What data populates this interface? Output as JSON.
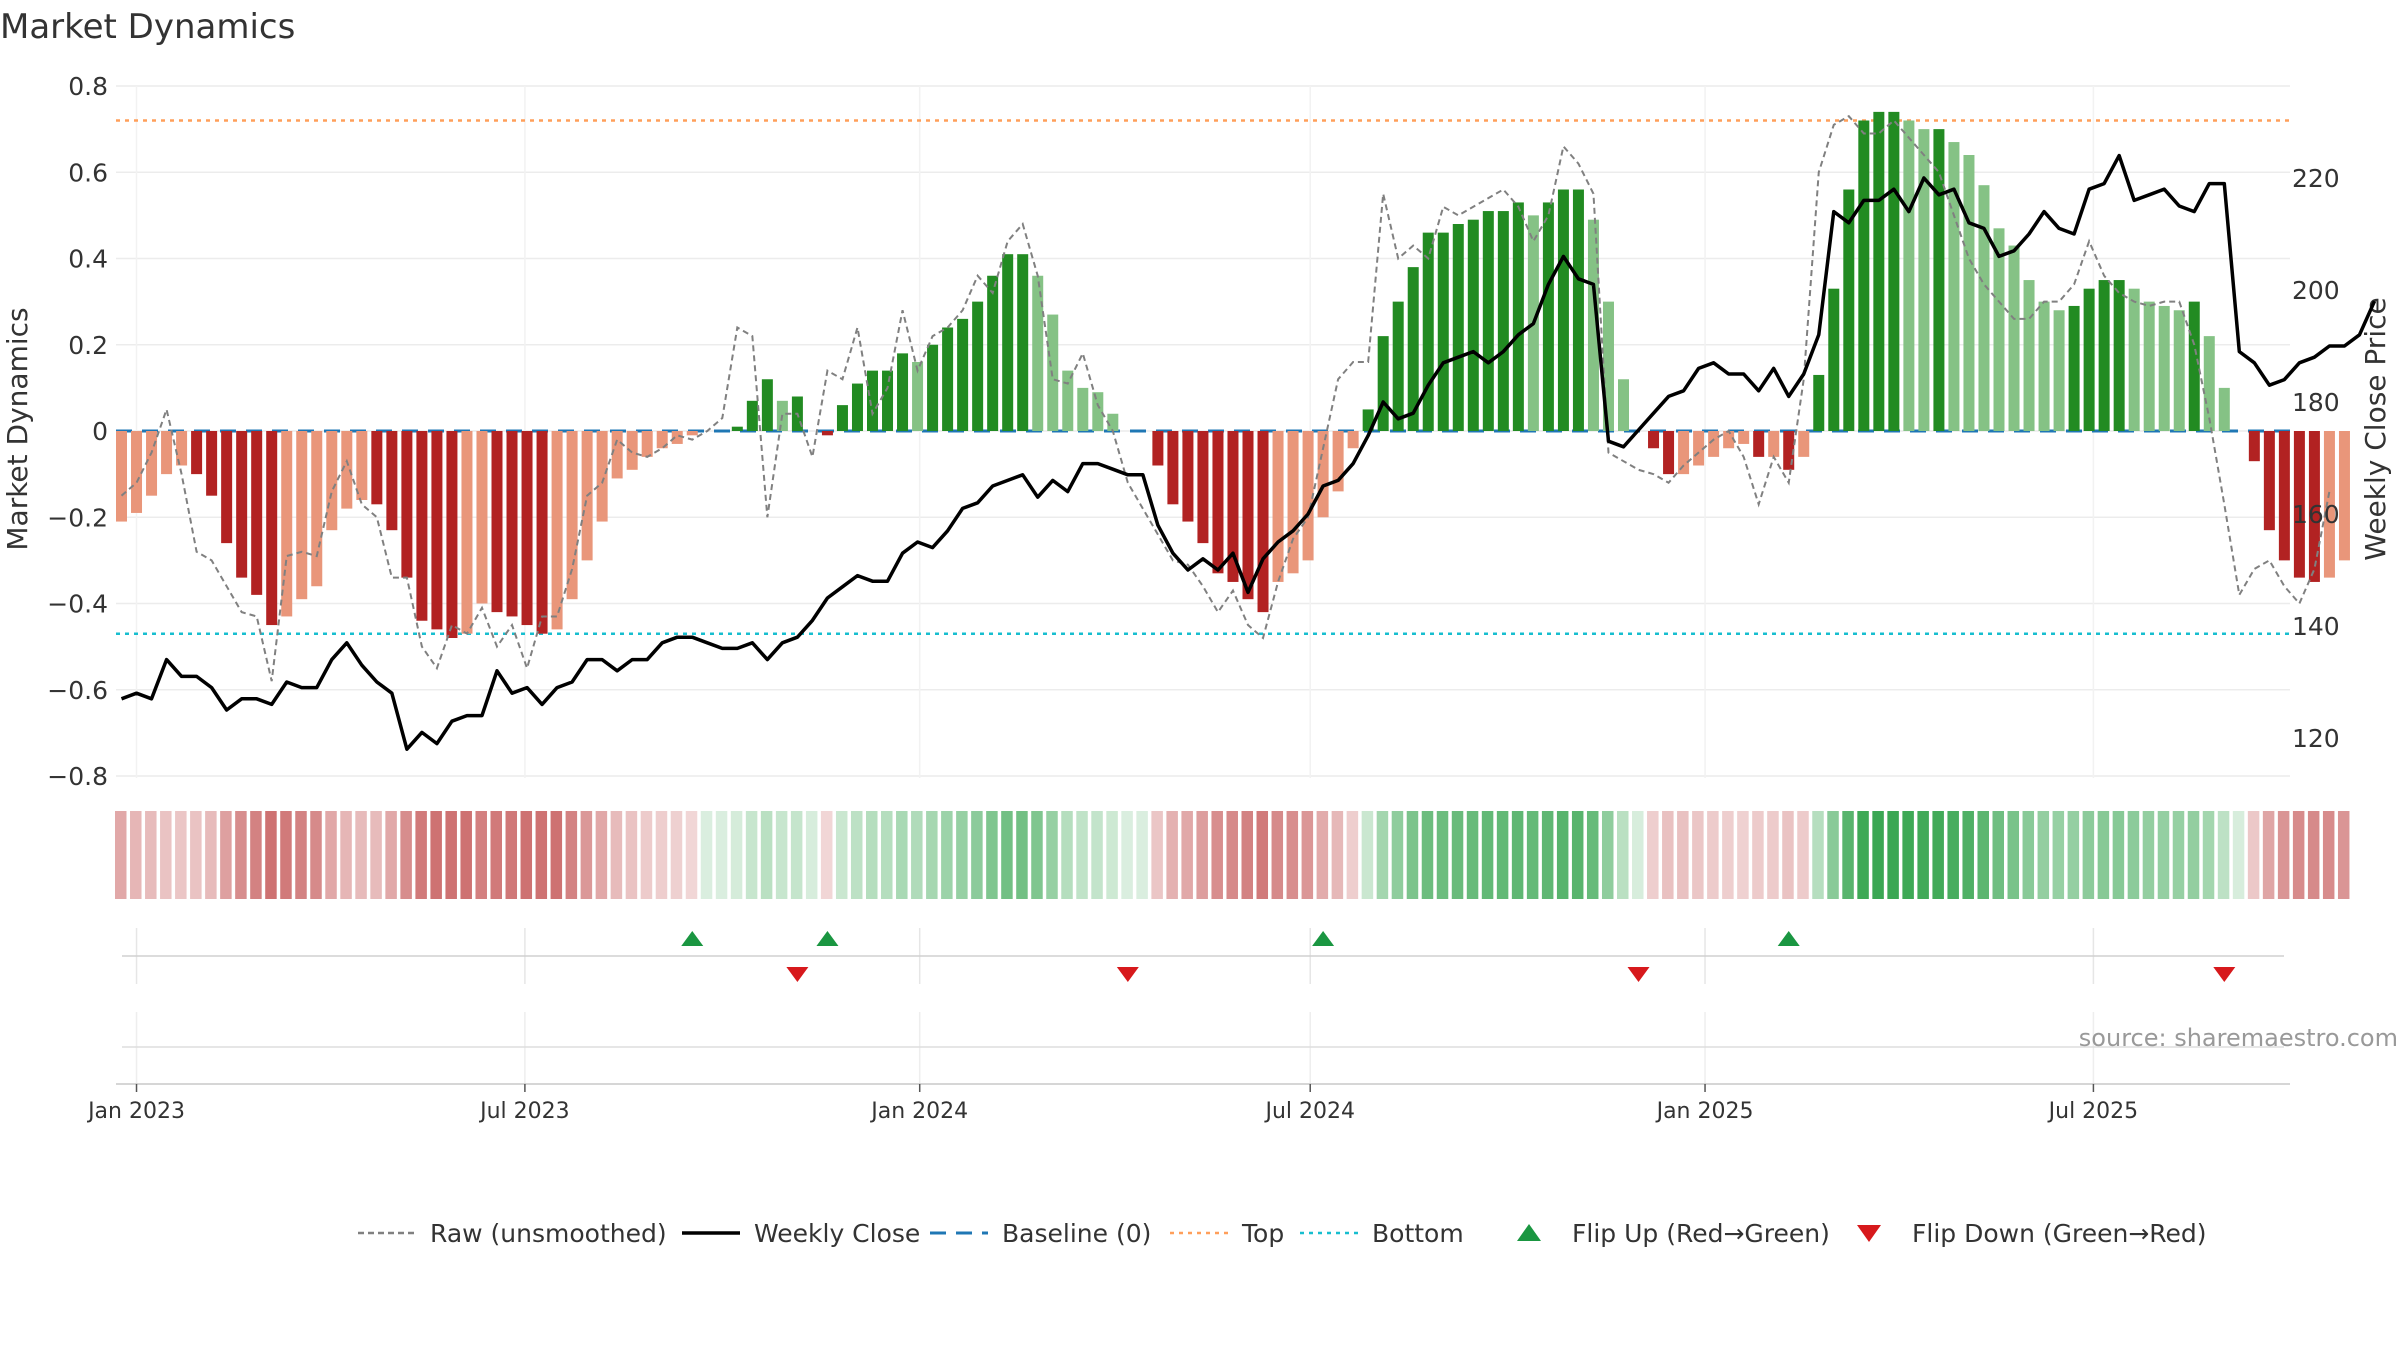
{
  "chart_data": {
    "type": "bar",
    "title": "Market Dynamics",
    "ylabel": "Market Dynamics",
    "y2label": "Weekly Close Price",
    "ylim": [
      -0.8,
      0.8
    ],
    "y2lim": [
      120,
      220
    ],
    "y_ticks": [
      "0.8",
      "0.6",
      "0.4",
      "0.2",
      "0",
      "−0.2",
      "−0.4",
      "−0.6",
      "−0.8"
    ],
    "y2_ticks": [
      "220",
      "200",
      "180",
      "160",
      "140",
      "120"
    ],
    "x_ticks": [
      {
        "label": "Jan 2023",
        "date": "2023-01-01"
      },
      {
        "label": "Jul 2023",
        "date": "2023-07-01"
      },
      {
        "label": "Jan 2024",
        "date": "2024-01-01"
      },
      {
        "label": "Jul 2024",
        "date": "2024-07-01"
      },
      {
        "label": "Jan 2025",
        "date": "2025-01-01"
      },
      {
        "label": "Jul 2025",
        "date": "2025-07-01"
      }
    ],
    "first_week": "2022-12-25",
    "top_line": 0.72,
    "bottom_line": -0.47,
    "baseline": 0,
    "source": "source: sharemaestro.com",
    "colors": {
      "red_strong": "#b22222",
      "red_light": "#e9967a",
      "green_strong": "#228b22",
      "green_light": "#85c285",
      "close_line": "#000000",
      "raw_line": "#808080",
      "baseline": "#1f77b4",
      "top": "#ff9f5a",
      "bottom": "#17becf",
      "flip_up": "#1a9641",
      "flip_down": "#d7191c"
    },
    "series": [
      {
        "name": "Market Dynamics",
        "values": [
          -0.21,
          -0.19,
          -0.15,
          -0.1,
          -0.08,
          -0.1,
          -0.15,
          -0.26,
          -0.34,
          -0.38,
          -0.45,
          -0.43,
          -0.39,
          -0.36,
          -0.23,
          -0.18,
          -0.16,
          -0.17,
          -0.23,
          -0.34,
          -0.44,
          -0.46,
          -0.48,
          -0.47,
          -0.4,
          -0.42,
          -0.43,
          -0.45,
          -0.47,
          -0.46,
          -0.39,
          -0.3,
          -0.21,
          -0.11,
          -0.09,
          -0.06,
          -0.04,
          -0.03,
          -0.01,
          0.0,
          0.0,
          0.01,
          0.07,
          0.12,
          0.07,
          0.08,
          0.0,
          -0.01,
          0.06,
          0.11,
          0.14,
          0.14,
          0.18,
          0.16,
          0.2,
          0.24,
          0.26,
          0.3,
          0.36,
          0.41,
          0.41,
          0.36,
          0.27,
          0.14,
          0.1,
          0.09,
          0.04,
          0.0,
          0.0,
          -0.08,
          -0.17,
          -0.21,
          -0.26,
          -0.33,
          -0.35,
          -0.39,
          -0.42,
          -0.35,
          -0.33,
          -0.3,
          -0.2,
          -0.14,
          -0.04,
          0.05,
          0.22,
          0.3,
          0.38,
          0.46,
          0.46,
          0.48,
          0.49,
          0.51,
          0.51,
          0.53,
          0.5,
          0.53,
          0.56,
          0.56,
          0.49,
          0.3,
          0.12,
          0.0,
          -0.04,
          -0.1,
          -0.1,
          -0.08,
          -0.06,
          -0.04,
          -0.03,
          -0.06,
          -0.06,
          -0.09,
          -0.06,
          0.13,
          0.33,
          0.56,
          0.72,
          0.74,
          0.74,
          0.72,
          0.7,
          0.7,
          0.67,
          0.64,
          0.57,
          0.47,
          0.43,
          0.35,
          0.3,
          0.28,
          0.29,
          0.33,
          0.35,
          0.35,
          0.33,
          0.3,
          0.29,
          0.28,
          0.3,
          0.22,
          0.1,
          0.0,
          -0.07,
          -0.23,
          -0.3,
          -0.34,
          -0.35,
          -0.34,
          -0.3
        ]
      },
      {
        "name": "Raw (unsmoothed)",
        "values": [
          -0.15,
          -0.12,
          -0.05,
          0.05,
          -0.1,
          -0.28,
          -0.3,
          -0.36,
          -0.42,
          -0.43,
          -0.58,
          -0.29,
          -0.28,
          -0.29,
          -0.14,
          -0.07,
          -0.17,
          -0.2,
          -0.34,
          -0.34,
          -0.5,
          -0.55,
          -0.45,
          -0.47,
          -0.41,
          -0.5,
          -0.45,
          -0.55,
          -0.43,
          -0.43,
          -0.32,
          -0.15,
          -0.12,
          -0.02,
          -0.05,
          -0.06,
          -0.04,
          -0.01,
          -0.02,
          0.0,
          0.03,
          0.24,
          0.22,
          -0.2,
          0.04,
          0.04,
          -0.06,
          0.14,
          0.12,
          0.24,
          0.04,
          0.1,
          0.28,
          0.14,
          0.22,
          0.24,
          0.28,
          0.36,
          0.32,
          0.44,
          0.48,
          0.36,
          0.12,
          0.11,
          0.18,
          0.06,
          0.0,
          -0.12,
          -0.18,
          -0.24,
          -0.3,
          -0.31,
          -0.36,
          -0.42,
          -0.37,
          -0.45,
          -0.48,
          -0.35,
          -0.25,
          -0.2,
          -0.04,
          0.12,
          0.16,
          0.16,
          0.55,
          0.4,
          0.43,
          0.4,
          0.52,
          0.5,
          0.52,
          0.54,
          0.56,
          0.52,
          0.44,
          0.5,
          0.66,
          0.62,
          0.55,
          -0.05,
          -0.07,
          -0.09,
          -0.1,
          -0.12,
          -0.08,
          -0.05,
          -0.02,
          0.0,
          -0.06,
          -0.17,
          -0.06,
          -0.12,
          0.12,
          0.6,
          0.71,
          0.73,
          0.69,
          0.69,
          0.72,
          0.68,
          0.64,
          0.6,
          0.5,
          0.4,
          0.34,
          0.3,
          0.26,
          0.26,
          0.3,
          0.3,
          0.34,
          0.44,
          0.36,
          0.32,
          0.3,
          0.29,
          0.3,
          0.3,
          0.2,
          0.03,
          -0.17,
          -0.38,
          -0.32,
          -0.3,
          -0.36,
          -0.4,
          -0.32,
          -0.14
        ]
      },
      {
        "name": "Weekly Close",
        "values": [
          127,
          128,
          127,
          134,
          131,
          131,
          129,
          125,
          127,
          127,
          126,
          130,
          129,
          129,
          134,
          137,
          133,
          130,
          128,
          118,
          121,
          119,
          123,
          124,
          124,
          132,
          128,
          129,
          126,
          129,
          130,
          134,
          134,
          132,
          134,
          134,
          137,
          138,
          138,
          137,
          136,
          136,
          137,
          134,
          137,
          138,
          141,
          145,
          147,
          149,
          148,
          148,
          153,
          155,
          154,
          157,
          161,
          162,
          165,
          166,
          167,
          163,
          166,
          164,
          169,
          169,
          168,
          167,
          167,
          158,
          153,
          150,
          152,
          150,
          153,
          146,
          152,
          155,
          157,
          160,
          165,
          166,
          169,
          174,
          180,
          177,
          178,
          183,
          187,
          188,
          189,
          187,
          189,
          192,
          194,
          201,
          206,
          202,
          201,
          173,
          172,
          175,
          178,
          181,
          182,
          186,
          187,
          185,
          185,
          182,
          186,
          181,
          185,
          192,
          214,
          212,
          216,
          216,
          218,
          214,
          220,
          217,
          218,
          212,
          211,
          206,
          207,
          210,
          214,
          211,
          210,
          218,
          219,
          224,
          216,
          217,
          218,
          215,
          214,
          219,
          219,
          189,
          187,
          183,
          184,
          187,
          188,
          190,
          190,
          192,
          198
        ]
      }
    ],
    "strip_intensity": [
      0.34,
      0.25,
      0.22,
      0.17,
      0.15,
      0.17,
      0.22,
      0.39,
      0.51,
      0.58,
      0.68,
      0.63,
      0.58,
      0.53,
      0.34,
      0.25,
      0.22,
      0.22,
      0.34,
      0.51,
      0.63,
      0.68,
      0.68,
      0.68,
      0.59,
      0.63,
      0.64,
      0.68,
      0.68,
      0.68,
      0.58,
      0.44,
      0.34,
      0.22,
      0.17,
      0.12,
      0.1,
      0.09,
      0.05,
      0.02,
      0.02,
      0.05,
      0.14,
      0.22,
      0.14,
      0.15,
      0.04,
      0.05,
      0.12,
      0.2,
      0.25,
      0.25,
      0.32,
      0.28,
      0.34,
      0.4,
      0.44,
      0.5,
      0.58,
      0.66,
      0.66,
      0.58,
      0.44,
      0.25,
      0.18,
      0.16,
      0.1,
      0.02,
      0.02,
      0.15,
      0.28,
      0.34,
      0.4,
      0.5,
      0.53,
      0.58,
      0.63,
      0.53,
      0.5,
      0.45,
      0.32,
      0.24,
      0.1,
      0.12,
      0.36,
      0.48,
      0.6,
      0.7,
      0.7,
      0.72,
      0.73,
      0.76,
      0.76,
      0.78,
      0.74,
      0.78,
      0.82,
      0.82,
      0.73,
      0.48,
      0.22,
      0.04,
      0.1,
      0.18,
      0.18,
      0.15,
      0.12,
      0.1,
      0.08,
      0.12,
      0.12,
      0.17,
      0.12,
      0.24,
      0.52,
      0.82,
      0.98,
      1.0,
      1.0,
      0.98,
      0.96,
      0.96,
      0.92,
      0.88,
      0.8,
      0.68,
      0.62,
      0.52,
      0.46,
      0.44,
      0.45,
      0.5,
      0.53,
      0.53,
      0.5,
      0.46,
      0.45,
      0.44,
      0.46,
      0.36,
      0.2,
      0.04,
      0.14,
      0.36,
      0.46,
      0.52,
      0.53,
      0.52,
      0.46
    ],
    "flip_up_dates": [
      "2023-09-17",
      "2023-11-19",
      "2024-07-07",
      "2025-02-09"
    ],
    "flip_down_dates": [
      "2023-11-05",
      "2024-04-07",
      "2024-12-01",
      "2025-08-31"
    ]
  },
  "legend": {
    "items": [
      {
        "label": "Raw (unsmoothed)",
        "style": "dashed-gray"
      },
      {
        "label": "Weekly Close",
        "style": "solid-black"
      },
      {
        "label": "Baseline (0)",
        "style": "dashed-blue"
      },
      {
        "label": "Top",
        "style": "dotted-orange"
      },
      {
        "label": "Bottom",
        "style": "dotted-cyan"
      },
      {
        "label": "Flip Up (Red→Green)",
        "style": "triangle-up"
      },
      {
        "label": "Flip Down (Green→Red)",
        "style": "triangle-down"
      }
    ]
  }
}
